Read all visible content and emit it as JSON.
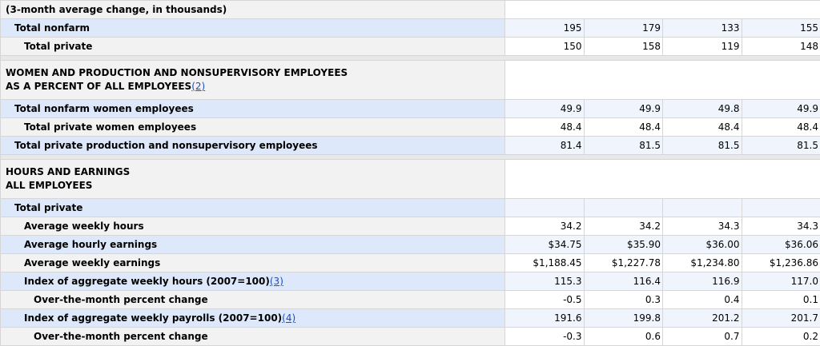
{
  "rows": [
    {
      "label": "(3-month average change, in thousands)"
    },
    {
      "label": "Total nonfarm",
      "values": [
        "195",
        "179",
        "133",
        "155"
      ]
    },
    {
      "label": "Total private",
      "values": [
        "150",
        "158",
        "119",
        "148"
      ]
    },
    {
      "label_line1": "WOMEN AND PRODUCTION AND NONSUPERVISORY EMPLOYEES",
      "label_line2": "AS A PERCENT OF ALL EMPLOYEES",
      "footnote": "(2)"
    },
    {
      "label": "Total nonfarm women employees",
      "values": [
        "49.9",
        "49.9",
        "49.8",
        "49.9"
      ]
    },
    {
      "label": "Total private women employees",
      "values": [
        "48.4",
        "48.4",
        "48.4",
        "48.4"
      ]
    },
    {
      "label": "Total private production and nonsupervisory employees",
      "values": [
        "81.4",
        "81.5",
        "81.5",
        "81.5"
      ]
    },
    {
      "label_line1": "HOURS AND EARNINGS",
      "label_line2": "ALL EMPLOYEES"
    },
    {
      "label": "Total private"
    },
    {
      "label": "Average weekly hours",
      "values": [
        "34.2",
        "34.2",
        "34.3",
        "34.3"
      ]
    },
    {
      "label": "Average hourly earnings",
      "values": [
        "$34.75",
        "$35.90",
        "$36.00",
        "$36.06"
      ]
    },
    {
      "label": "Average weekly earnings",
      "values": [
        "$1,188.45",
        "$1,227.78",
        "$1,234.80",
        "$1,236.86"
      ]
    },
    {
      "label": "Index of aggregate weekly hours (2007=100)",
      "footnote": "(3)",
      "values": [
        "115.3",
        "116.4",
        "116.9",
        "117.0"
      ]
    },
    {
      "label": "Over-the-month percent change",
      "values": [
        "-0.5",
        "0.3",
        "0.4",
        "0.1"
      ]
    },
    {
      "label": "Index of aggregate weekly payrolls (2007=100)",
      "footnote": "(4)",
      "values": [
        "191.6",
        "199.8",
        "201.2",
        "201.7"
      ]
    },
    {
      "label": "Over-the-month percent change",
      "values": [
        "-0.3",
        "0.6",
        "0.7",
        "0.2"
      ]
    }
  ],
  "highlight_color": "#e0192b"
}
